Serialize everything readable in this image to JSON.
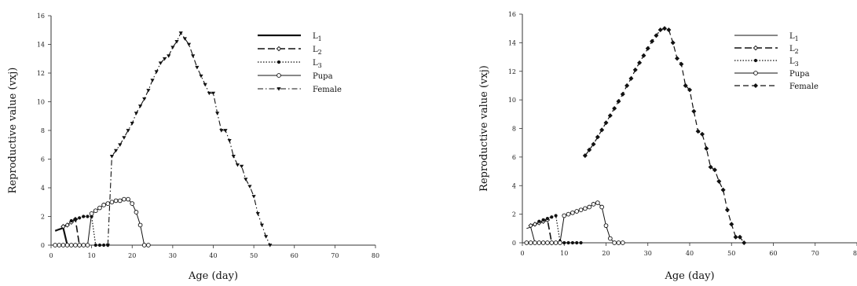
{
  "chart_data": [
    {
      "type": "line",
      "xlabel": "Age (day)",
      "ylabel": "Reproductive value (vxj)",
      "xlim": [
        0,
        80
      ],
      "ylim": [
        0,
        16
      ],
      "xticks": [
        0,
        10,
        20,
        30,
        40,
        50,
        60,
        70,
        80
      ],
      "yticks": [
        0,
        2,
        4,
        6,
        8,
        10,
        12,
        14,
        16
      ],
      "grid": false,
      "legend_position": "top-right",
      "series": [
        {
          "name": "L1",
          "legend_label": "L1",
          "line_style": "solid-thick",
          "marker": "none",
          "x": [
            1,
            2,
            3,
            4
          ],
          "y": [
            1.0,
            1.1,
            1.2,
            0.0
          ]
        },
        {
          "name": "L2",
          "legend_label": "L2",
          "line_style": "long-dash",
          "marker": "open-diamond",
          "x": [
            3,
            4,
            5,
            6,
            7
          ],
          "y": [
            1.3,
            1.4,
            1.6,
            1.8,
            0.0
          ]
        },
        {
          "name": "L3",
          "legend_label": "L3",
          "line_style": "dotted",
          "marker": "filled-circle",
          "x": [
            5,
            6,
            7,
            8,
            9,
            10,
            11,
            12,
            13,
            14
          ],
          "y": [
            1.7,
            1.8,
            1.9,
            2.0,
            2.0,
            2.0,
            0.0,
            0.0,
            0.0,
            0.0
          ]
        },
        {
          "name": "Pupa",
          "legend_label": "Pupa",
          "line_style": "solid-thin",
          "marker": "open-circle",
          "x": [
            1,
            2,
            3,
            4,
            5,
            6,
            7,
            8,
            9,
            10,
            11,
            12,
            13,
            14,
            15,
            16,
            17,
            18,
            19,
            20,
            21,
            22,
            23,
            24
          ],
          "y": [
            0.0,
            0.0,
            0.0,
            0.0,
            0.0,
            0.0,
            0.0,
            0.0,
            0.0,
            2.2,
            2.4,
            2.6,
            2.8,
            2.9,
            3.0,
            3.1,
            3.1,
            3.2,
            3.2,
            2.9,
            2.3,
            1.4,
            0.0,
            0.0
          ]
        },
        {
          "name": "Female",
          "legend_label": "Female",
          "line_style": "dash-dot",
          "marker": "filled-triangle-down",
          "x": [
            14,
            15,
            16,
            17,
            18,
            19,
            20,
            21,
            22,
            23,
            24,
            25,
            26,
            27,
            28,
            29,
            30,
            31,
            32,
            33,
            34,
            35,
            36,
            37,
            38,
            39,
            40,
            41,
            42,
            43,
            44,
            45,
            46,
            47,
            48,
            49,
            50,
            51,
            52,
            53,
            54
          ],
          "y": [
            0.0,
            6.2,
            6.6,
            7.0,
            7.5,
            8.0,
            8.5,
            9.2,
            9.7,
            10.2,
            10.8,
            11.5,
            12.1,
            12.7,
            13.0,
            13.2,
            13.8,
            14.2,
            14.8,
            14.4,
            14.0,
            13.2,
            12.4,
            11.8,
            11.2,
            10.6,
            10.6,
            9.2,
            8.0,
            8.0,
            7.3,
            6.2,
            5.6,
            5.5,
            4.6,
            4.1,
            3.4,
            2.2,
            1.4,
            0.6,
            0.0
          ]
        }
      ]
    },
    {
      "type": "line",
      "xlabel": "Age (day)",
      "ylabel": "Reproductive value (vxj)",
      "xlim": [
        0,
        80
      ],
      "ylim": [
        0,
        16
      ],
      "xticks": [
        0,
        10,
        20,
        30,
        40,
        50,
        60,
        70,
        80
      ],
      "yticks": [
        0,
        2,
        4,
        6,
        8,
        10,
        12,
        14,
        16
      ],
      "grid": false,
      "legend_position": "top-right",
      "series": [
        {
          "name": "L1",
          "legend_label": "L1",
          "line_style": "solid-thin",
          "marker": "none",
          "x": [
            1,
            2,
            3
          ],
          "y": [
            1.0,
            1.1,
            0.0
          ]
        },
        {
          "name": "L2",
          "legend_label": "L2",
          "line_style": "long-dash",
          "marker": "open-diamond",
          "x": [
            2,
            3,
            4,
            5,
            6,
            7
          ],
          "y": [
            1.2,
            1.3,
            1.4,
            1.5,
            1.6,
            0.0
          ]
        },
        {
          "name": "L3",
          "legend_label": "L3",
          "line_style": "dotted",
          "marker": "filled-circle",
          "x": [
            4,
            5,
            6,
            7,
            8,
            9,
            10,
            11,
            12,
            13,
            14
          ],
          "y": [
            1.5,
            1.6,
            1.7,
            1.8,
            1.9,
            0.1,
            0.0,
            0.0,
            0.0,
            0.0,
            0.0
          ]
        },
        {
          "name": "Pupa",
          "legend_label": "Pupa",
          "line_style": "solid-thin",
          "marker": "open-circle",
          "x": [
            1,
            2,
            3,
            4,
            5,
            6,
            7,
            8,
            9,
            10,
            11,
            12,
            13,
            14,
            15,
            16,
            17,
            18,
            19,
            20,
            21,
            22,
            23,
            24
          ],
          "y": [
            0.0,
            0.0,
            0.0,
            0.0,
            0.0,
            0.0,
            0.0,
            0.0,
            0.0,
            1.9,
            2.0,
            2.1,
            2.2,
            2.3,
            2.4,
            2.5,
            2.7,
            2.8,
            2.5,
            1.2,
            0.3,
            0.0,
            0.0,
            0.0
          ]
        },
        {
          "name": "Female",
          "legend_label": "Female",
          "line_style": "dashed",
          "marker": "filled-diamond",
          "x": [
            15,
            16,
            17,
            18,
            19,
            20,
            21,
            22,
            23,
            24,
            25,
            26,
            27,
            28,
            29,
            30,
            31,
            32,
            33,
            34,
            35,
            36,
            37,
            38,
            39,
            40,
            41,
            42,
            43,
            44,
            45,
            46,
            47,
            48,
            49,
            50,
            51,
            52,
            53
          ],
          "y": [
            6.1,
            6.5,
            6.9,
            7.4,
            7.9,
            8.4,
            8.9,
            9.4,
            9.9,
            10.4,
            11.0,
            11.5,
            12.1,
            12.6,
            13.1,
            13.6,
            14.1,
            14.5,
            14.9,
            15.0,
            14.9,
            14.0,
            12.9,
            12.5,
            11.0,
            10.7,
            9.2,
            7.8,
            7.6,
            6.6,
            5.3,
            5.1,
            4.3,
            3.7,
            2.3,
            1.3,
            0.4,
            0.4,
            0.0
          ]
        }
      ]
    }
  ]
}
